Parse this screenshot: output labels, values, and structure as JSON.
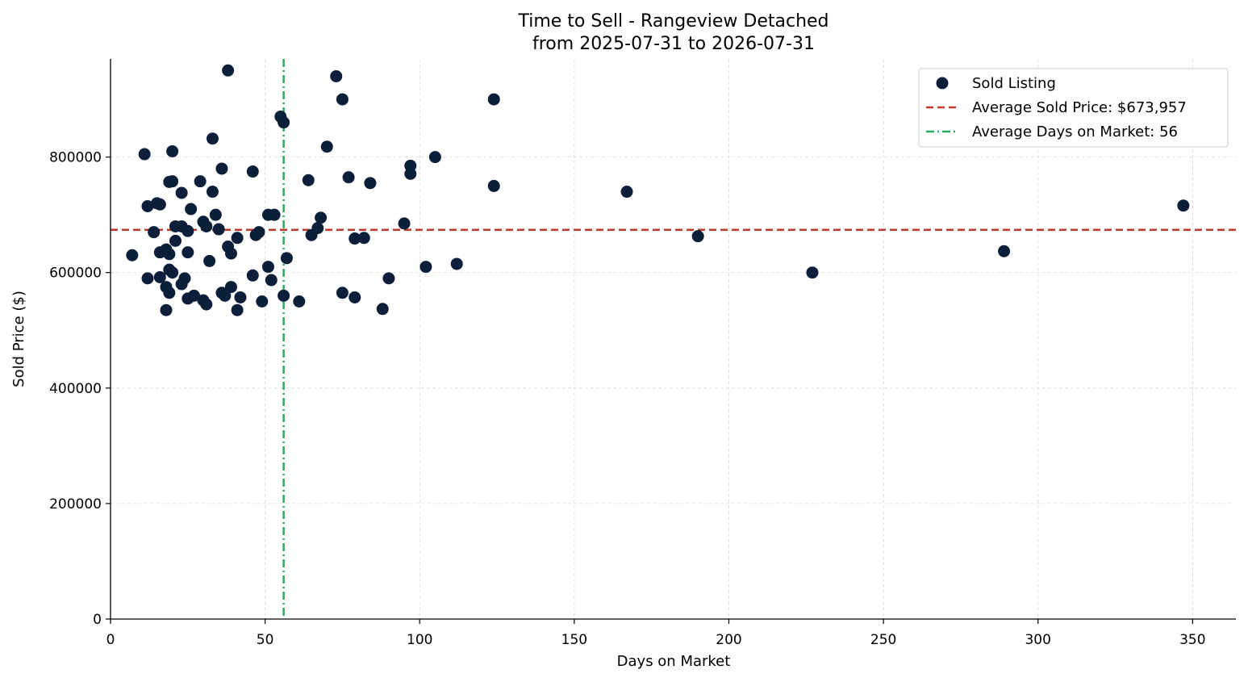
{
  "chart_data": {
    "type": "scatter",
    "title": "Time to Sell - Rangeview Detached",
    "subtitle": "from 2025-07-31 to 2026-07-31",
    "xlabel": "Days on Market",
    "ylabel": "Sold Price ($)",
    "xlim": [
      0,
      364
    ],
    "ylim": [
      0,
      970000
    ],
    "x_ticks": [
      0,
      50,
      100,
      150,
      200,
      250,
      300,
      350
    ],
    "y_ticks": [
      0,
      200000,
      400000,
      600000,
      800000
    ],
    "grid": true,
    "legend_position": "top-right",
    "colors": {
      "points": "#0b1f3a",
      "avg_price_line": "#c0392b",
      "avg_days_line": "#27ae60",
      "grid": "#d9d9d9"
    },
    "legend": [
      {
        "label": "Sold Listing",
        "style": "marker"
      },
      {
        "label": "Average Sold Price: $673,957",
        "style": "dashed"
      },
      {
        "label": "Average Days on Market: 56",
        "style": "dashdot"
      }
    ],
    "reference_lines": {
      "average_sold_price": 673957,
      "average_days_on_market": 56
    },
    "series": [
      {
        "name": "Sold Listing",
        "points": [
          [
            7,
            630000
          ],
          [
            11,
            805000
          ],
          [
            12,
            590000
          ],
          [
            12,
            715000
          ],
          [
            14,
            670000
          ],
          [
            15,
            720000
          ],
          [
            16,
            635000
          ],
          [
            16,
            592000
          ],
          [
            16,
            718000
          ],
          [
            18,
            640000
          ],
          [
            18,
            575000
          ],
          [
            18,
            535000
          ],
          [
            19,
            632000
          ],
          [
            19,
            605000
          ],
          [
            19,
            565000
          ],
          [
            19,
            757000
          ],
          [
            20,
            758000
          ],
          [
            20,
            810000
          ],
          [
            20,
            600000
          ],
          [
            21,
            680000
          ],
          [
            21,
            655000
          ],
          [
            23,
            580000
          ],
          [
            23,
            738000
          ],
          [
            23,
            680000
          ],
          [
            24,
            590000
          ],
          [
            25,
            555000
          ],
          [
            25,
            635000
          ],
          [
            25,
            672000
          ],
          [
            26,
            710000
          ],
          [
            27,
            560000
          ],
          [
            29,
            758000
          ],
          [
            30,
            552000
          ],
          [
            30,
            688000
          ],
          [
            31,
            545000
          ],
          [
            31,
            680000
          ],
          [
            32,
            620000
          ],
          [
            33,
            832000
          ],
          [
            33,
            740000
          ],
          [
            34,
            700000
          ],
          [
            35,
            675000
          ],
          [
            36,
            780000
          ],
          [
            36,
            565000
          ],
          [
            37,
            560000
          ],
          [
            38,
            950000
          ],
          [
            38,
            645000
          ],
          [
            39,
            633000
          ],
          [
            39,
            575000
          ],
          [
            41,
            535000
          ],
          [
            41,
            660000
          ],
          [
            42,
            557000
          ],
          [
            46,
            775000
          ],
          [
            46,
            595000
          ],
          [
            47,
            665000
          ],
          [
            48,
            670000
          ],
          [
            49,
            550000
          ],
          [
            51,
            700000
          ],
          [
            51,
            610000
          ],
          [
            52,
            587000
          ],
          [
            53,
            700000
          ],
          [
            55,
            870000
          ],
          [
            56,
            860000
          ],
          [
            56,
            560000
          ],
          [
            57,
            625000
          ],
          [
            61,
            550000
          ],
          [
            64,
            760000
          ],
          [
            65,
            665000
          ],
          [
            67,
            677000
          ],
          [
            68,
            695000
          ],
          [
            70,
            818000
          ],
          [
            73,
            940000
          ],
          [
            75,
            900000
          ],
          [
            75,
            565000
          ],
          [
            77,
            765000
          ],
          [
            79,
            557000
          ],
          [
            79,
            659000
          ],
          [
            82,
            660000
          ],
          [
            84,
            755000
          ],
          [
            88,
            537000
          ],
          [
            90,
            590000
          ],
          [
            95,
            685000
          ],
          [
            97,
            785000
          ],
          [
            97,
            771000
          ],
          [
            102,
            610000
          ],
          [
            105,
            800000
          ],
          [
            112,
            615000
          ],
          [
            124,
            900000
          ],
          [
            124,
            750000
          ],
          [
            167,
            740000
          ],
          [
            190,
            663000
          ],
          [
            227,
            600000
          ],
          [
            289,
            637000
          ],
          [
            347,
            716000
          ]
        ]
      }
    ]
  }
}
